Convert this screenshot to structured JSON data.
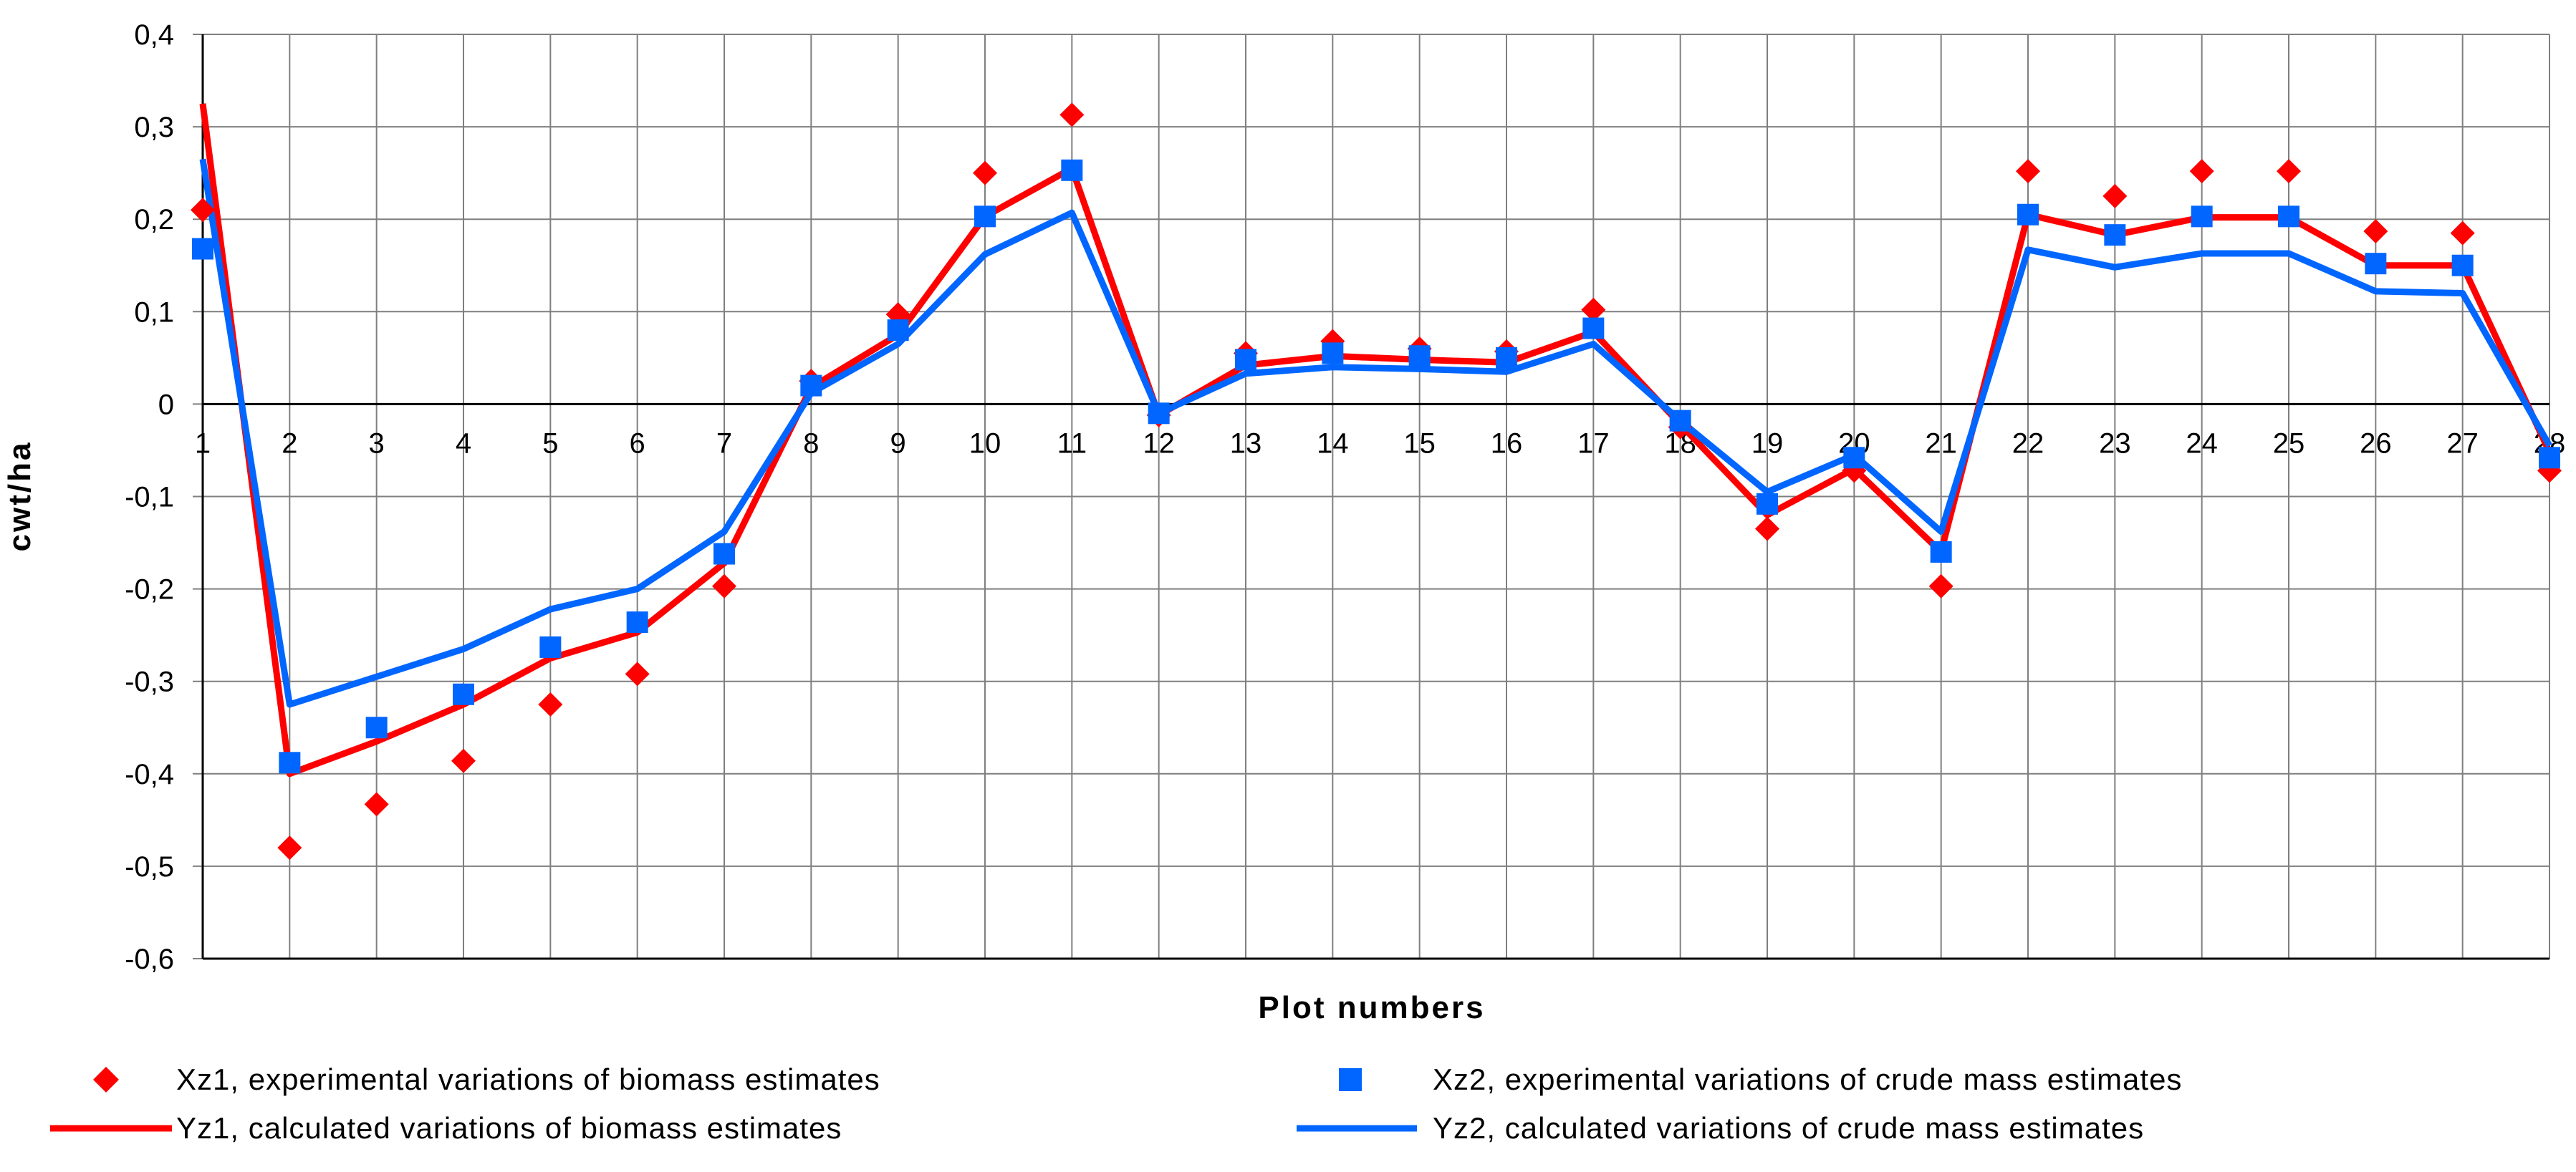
{
  "chart_data": {
    "type": "line",
    "xlabel": "Plot numbers",
    "ylabel": "cwt/ha",
    "ylim": [
      -0.6,
      0.4
    ],
    "ytick_step": 0.1,
    "y_tick_labels": [
      "-0,6",
      "-0,5",
      "-0,4",
      "-0,3",
      "-0,2",
      "-0,1",
      "0",
      "0,1",
      "0,2",
      "0,3",
      "0,4"
    ],
    "grid": true,
    "legend_position": "bottom",
    "categories": [
      "1",
      "2",
      "3",
      "4",
      "5",
      "6",
      "7",
      "8",
      "9",
      "10",
      "11",
      "12",
      "13",
      "14",
      "15",
      "16",
      "17",
      "18",
      "19",
      "20",
      "21",
      "22",
      "23",
      "24",
      "25",
      "26",
      "27",
      "28"
    ],
    "series": [
      {
        "name": "Xz1, experimental variations of biomass estimates",
        "kind": "markers",
        "marker": "diamond",
        "color": "#ff0000",
        "values": [
          0.21,
          -0.48,
          -0.433,
          -0.386,
          -0.325,
          -0.292,
          -0.197,
          0.025,
          0.097,
          0.25,
          0.313,
          -0.012,
          0.055,
          0.068,
          0.06,
          0.057,
          0.102,
          -0.025,
          -0.135,
          -0.072,
          -0.197,
          0.252,
          0.225,
          0.252,
          0.252,
          0.187,
          0.185,
          -0.072
        ]
      },
      {
        "name": "Xz2, experimental variations of crude mass estimates",
        "kind": "markers",
        "marker": "square",
        "color": "#0066ff",
        "values": [
          0.168,
          -0.388,
          -0.35,
          -0.314,
          -0.263,
          -0.236,
          -0.162,
          0.02,
          0.08,
          0.203,
          0.253,
          -0.01,
          0.048,
          0.055,
          0.052,
          0.05,
          0.082,
          -0.018,
          -0.108,
          -0.058,
          -0.16,
          0.205,
          0.183,
          0.203,
          0.203,
          0.152,
          0.15,
          -0.058
        ]
      },
      {
        "name": "Yz1, calculated variations of biomass estimates",
        "kind": "line",
        "color": "#ff0000",
        "values": [
          0.325,
          -0.4,
          -0.365,
          -0.325,
          -0.275,
          -0.247,
          -0.172,
          0.018,
          0.075,
          0.203,
          0.255,
          -0.012,
          0.042,
          0.052,
          0.048,
          0.045,
          0.078,
          -0.022,
          -0.12,
          -0.07,
          -0.16,
          0.205,
          0.183,
          0.202,
          0.202,
          0.15,
          0.15,
          -0.052
        ]
      },
      {
        "name": "Yz2, calculated variations of crude mass estimates",
        "kind": "line",
        "color": "#0066ff",
        "values": [
          0.265,
          -0.325,
          -0.295,
          -0.265,
          -0.222,
          -0.2,
          -0.138,
          0.012,
          0.065,
          0.162,
          0.207,
          -0.01,
          0.033,
          0.04,
          0.038,
          0.035,
          0.065,
          -0.018,
          -0.095,
          -0.055,
          -0.138,
          0.167,
          0.148,
          0.163,
          0.163,
          0.122,
          0.12,
          -0.045
        ]
      }
    ]
  }
}
